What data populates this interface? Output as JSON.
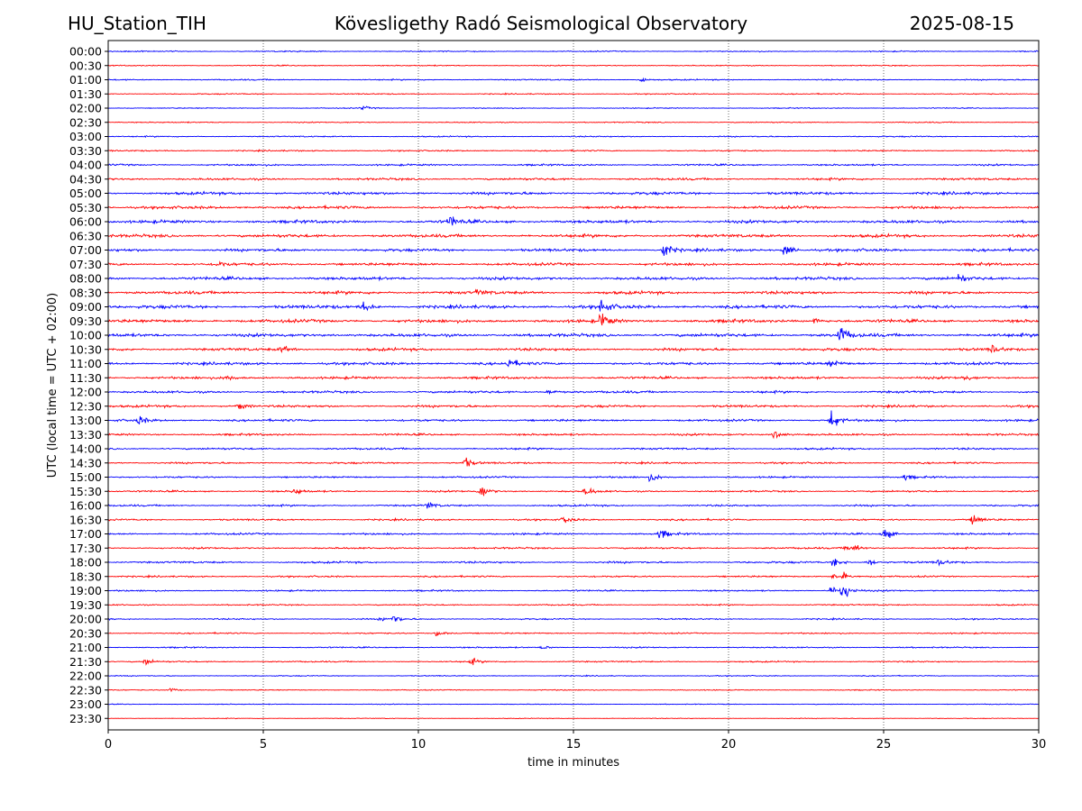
{
  "header": {
    "station": "HU_Station_TIH",
    "title": "Kövesligethy Radó Seismological Observatory",
    "date": "2025-08-15"
  },
  "chart_data": {
    "type": "line",
    "title": "Kövesligethy Radó Seismological Observatory",
    "xlabel": "time in minutes",
    "ylabel": "UTC (local time = UTC + 02:00)",
    "xlim": [
      0,
      30
    ],
    "xticks": [
      "0",
      "5",
      "10",
      "15",
      "20",
      "25",
      "30"
    ],
    "grid": "vertical dotted lines at 5-minute intervals",
    "trace_colors": [
      "#0000ff",
      "#ff0000"
    ],
    "row_labels": [
      "00:00",
      "00:30",
      "01:00",
      "01:30",
      "02:00",
      "02:30",
      "03:00",
      "03:30",
      "04:00",
      "04:30",
      "05:00",
      "05:30",
      "06:00",
      "06:30",
      "07:00",
      "07:30",
      "08:00",
      "08:30",
      "09:00",
      "09:30",
      "10:00",
      "10:30",
      "11:00",
      "11:30",
      "12:00",
      "12:30",
      "13:00",
      "13:30",
      "14:00",
      "14:30",
      "15:00",
      "15:30",
      "16:00",
      "16:30",
      "17:00",
      "17:30",
      "18:00",
      "18:30",
      "19:00",
      "19:30",
      "20:00",
      "20:30",
      "21:00",
      "21:30",
      "22:00",
      "22:30",
      "23:00",
      "23:30"
    ],
    "noise_level": [
      0.8,
      0.8,
      0.9,
      0.8,
      0.7,
      0.8,
      0.9,
      1.0,
      1.3,
      1.6,
      2.0,
      2.0,
      2.2,
      2.2,
      2.0,
      2.0,
      2.2,
      2.2,
      2.4,
      2.3,
      2.3,
      2.0,
      2.0,
      1.8,
      1.7,
      1.7,
      1.6,
      1.5,
      1.4,
      1.3,
      1.3,
      1.3,
      1.3,
      1.3,
      1.4,
      1.3,
      1.4,
      1.2,
      1.1,
      1.0,
      1.0,
      1.0,
      1.0,
      1.0,
      0.7,
      0.7,
      0.6,
      0.5
    ],
    "events": [
      {
        "row": 4,
        "t": 8.2,
        "amp": 3
      },
      {
        "row": 2,
        "t": 17.2,
        "amp": 3
      },
      {
        "row": 12,
        "t": 11.0,
        "amp": 10
      },
      {
        "row": 14,
        "t": 17.9,
        "amp": 13
      },
      {
        "row": 14,
        "t": 21.8,
        "amp": 10
      },
      {
        "row": 15,
        "t": 3.5,
        "amp": 5
      },
      {
        "row": 16,
        "t": 27.4,
        "amp": 6
      },
      {
        "row": 17,
        "t": 11.9,
        "amp": 4
      },
      {
        "row": 18,
        "t": 8.2,
        "amp": 8
      },
      {
        "row": 18,
        "t": 15.9,
        "amp": 12
      },
      {
        "row": 19,
        "t": 15.9,
        "amp": 13
      },
      {
        "row": 19,
        "t": 22.8,
        "amp": 5
      },
      {
        "row": 20,
        "t": 23.6,
        "amp": 16
      },
      {
        "row": 21,
        "t": 5.6,
        "amp": 5
      },
      {
        "row": 21,
        "t": 28.5,
        "amp": 6
      },
      {
        "row": 22,
        "t": 12.9,
        "amp": 8
      },
      {
        "row": 22,
        "t": 23.3,
        "amp": 6
      },
      {
        "row": 23,
        "t": 3.8,
        "amp": 5
      },
      {
        "row": 23,
        "t": 27.6,
        "amp": 4
      },
      {
        "row": 24,
        "t": 14.2,
        "amp": 4
      },
      {
        "row": 25,
        "t": 4.2,
        "amp": 7
      },
      {
        "row": 26,
        "t": 1.0,
        "amp": 7
      },
      {
        "row": 26,
        "t": 23.3,
        "amp": 15
      },
      {
        "row": 27,
        "t": 21.5,
        "amp": 7
      },
      {
        "row": 29,
        "t": 11.5,
        "amp": 8
      },
      {
        "row": 30,
        "t": 17.5,
        "amp": 7
      },
      {
        "row": 30,
        "t": 25.7,
        "amp": 4
      },
      {
        "row": 31,
        "t": 6.0,
        "amp": 6
      },
      {
        "row": 31,
        "t": 12.0,
        "amp": 12
      },
      {
        "row": 31,
        "t": 15.4,
        "amp": 7
      },
      {
        "row": 32,
        "t": 10.3,
        "amp": 5
      },
      {
        "row": 33,
        "t": 14.7,
        "amp": 6
      },
      {
        "row": 33,
        "t": 27.9,
        "amp": 10
      },
      {
        "row": 34,
        "t": 17.8,
        "amp": 8
      },
      {
        "row": 34,
        "t": 25.0,
        "amp": 11
      },
      {
        "row": 35,
        "t": 23.8,
        "amp": 5
      },
      {
        "row": 35,
        "t": 24.1,
        "amp": 5
      },
      {
        "row": 36,
        "t": 23.4,
        "amp": 8
      },
      {
        "row": 36,
        "t": 24.5,
        "amp": 6
      },
      {
        "row": 36,
        "t": 26.8,
        "amp": 5
      },
      {
        "row": 37,
        "t": 23.4,
        "amp": 5
      },
      {
        "row": 37,
        "t": 23.7,
        "amp": 5
      },
      {
        "row": 38,
        "t": 23.3,
        "amp": 7
      },
      {
        "row": 38,
        "t": 23.6,
        "amp": 12
      },
      {
        "row": 38,
        "t": 23.8,
        "amp": 8
      },
      {
        "row": 40,
        "t": 9.2,
        "amp": 7
      },
      {
        "row": 40,
        "t": 8.8,
        "amp": 3
      },
      {
        "row": 41,
        "t": 10.6,
        "amp": 5
      },
      {
        "row": 42,
        "t": 14.0,
        "amp": 3
      },
      {
        "row": 43,
        "t": 1.2,
        "amp": 5
      },
      {
        "row": 43,
        "t": 11.7,
        "amp": 5
      },
      {
        "row": 45,
        "t": 2.0,
        "amp": 3
      }
    ]
  }
}
